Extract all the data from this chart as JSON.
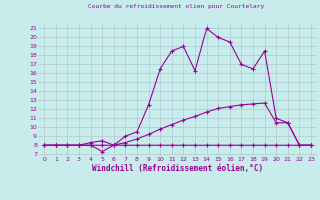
{
  "title": "Courbe du refroidissement olien pour Courtelary",
  "xlabel": "Windchill (Refroidissement éolien,°C)",
  "background_color": "#c8ecec",
  "grid_color": "#b0c8d0",
  "line_color": "#990099",
  "xlim": [
    -0.5,
    23.5
  ],
  "ylim": [
    6.8,
    21.5
  ],
  "yticks": [
    7,
    8,
    9,
    10,
    11,
    12,
    13,
    14,
    15,
    16,
    17,
    18,
    19,
    20,
    21
  ],
  "xticks": [
    0,
    1,
    2,
    3,
    4,
    5,
    6,
    7,
    8,
    9,
    10,
    11,
    12,
    13,
    14,
    15,
    16,
    17,
    18,
    19,
    20,
    21,
    22,
    23
  ],
  "line1_x": [
    0,
    1,
    2,
    3,
    4,
    5,
    6,
    7,
    8,
    9,
    10,
    11,
    12,
    13,
    14,
    15,
    16,
    17,
    18,
    19,
    20,
    21,
    22,
    23
  ],
  "line1_y": [
    8,
    8,
    8,
    8,
    8,
    7.3,
    8,
    8,
    8,
    8,
    8,
    8,
    8,
    8,
    8,
    8,
    8,
    8,
    8,
    8,
    8,
    8,
    8,
    8
  ],
  "line2_x": [
    0,
    1,
    2,
    3,
    4,
    5,
    6,
    7,
    8,
    9,
    10,
    11,
    12,
    13,
    14,
    15,
    16,
    17,
    18,
    19,
    20,
    21,
    22,
    23
  ],
  "line2_y": [
    8,
    8,
    8,
    8,
    8,
    8,
    8,
    8.3,
    8.7,
    9.2,
    9.8,
    10.3,
    10.8,
    11.2,
    11.7,
    12.1,
    12.3,
    12.5,
    12.6,
    12.7,
    10.5,
    10.5,
    8,
    8
  ],
  "line3_x": [
    0,
    1,
    2,
    3,
    4,
    5,
    6,
    7,
    8,
    9,
    10,
    11,
    12,
    13,
    14,
    15,
    16,
    17,
    18,
    19,
    20,
    21,
    22,
    23
  ],
  "line3_y": [
    8,
    8,
    8,
    8,
    8.3,
    8.5,
    8,
    9,
    9.5,
    12.5,
    16.5,
    18.5,
    19.0,
    16.3,
    21.0,
    20.0,
    19.5,
    17.0,
    16.5,
    18.5,
    11.0,
    10.5,
    8,
    8
  ]
}
